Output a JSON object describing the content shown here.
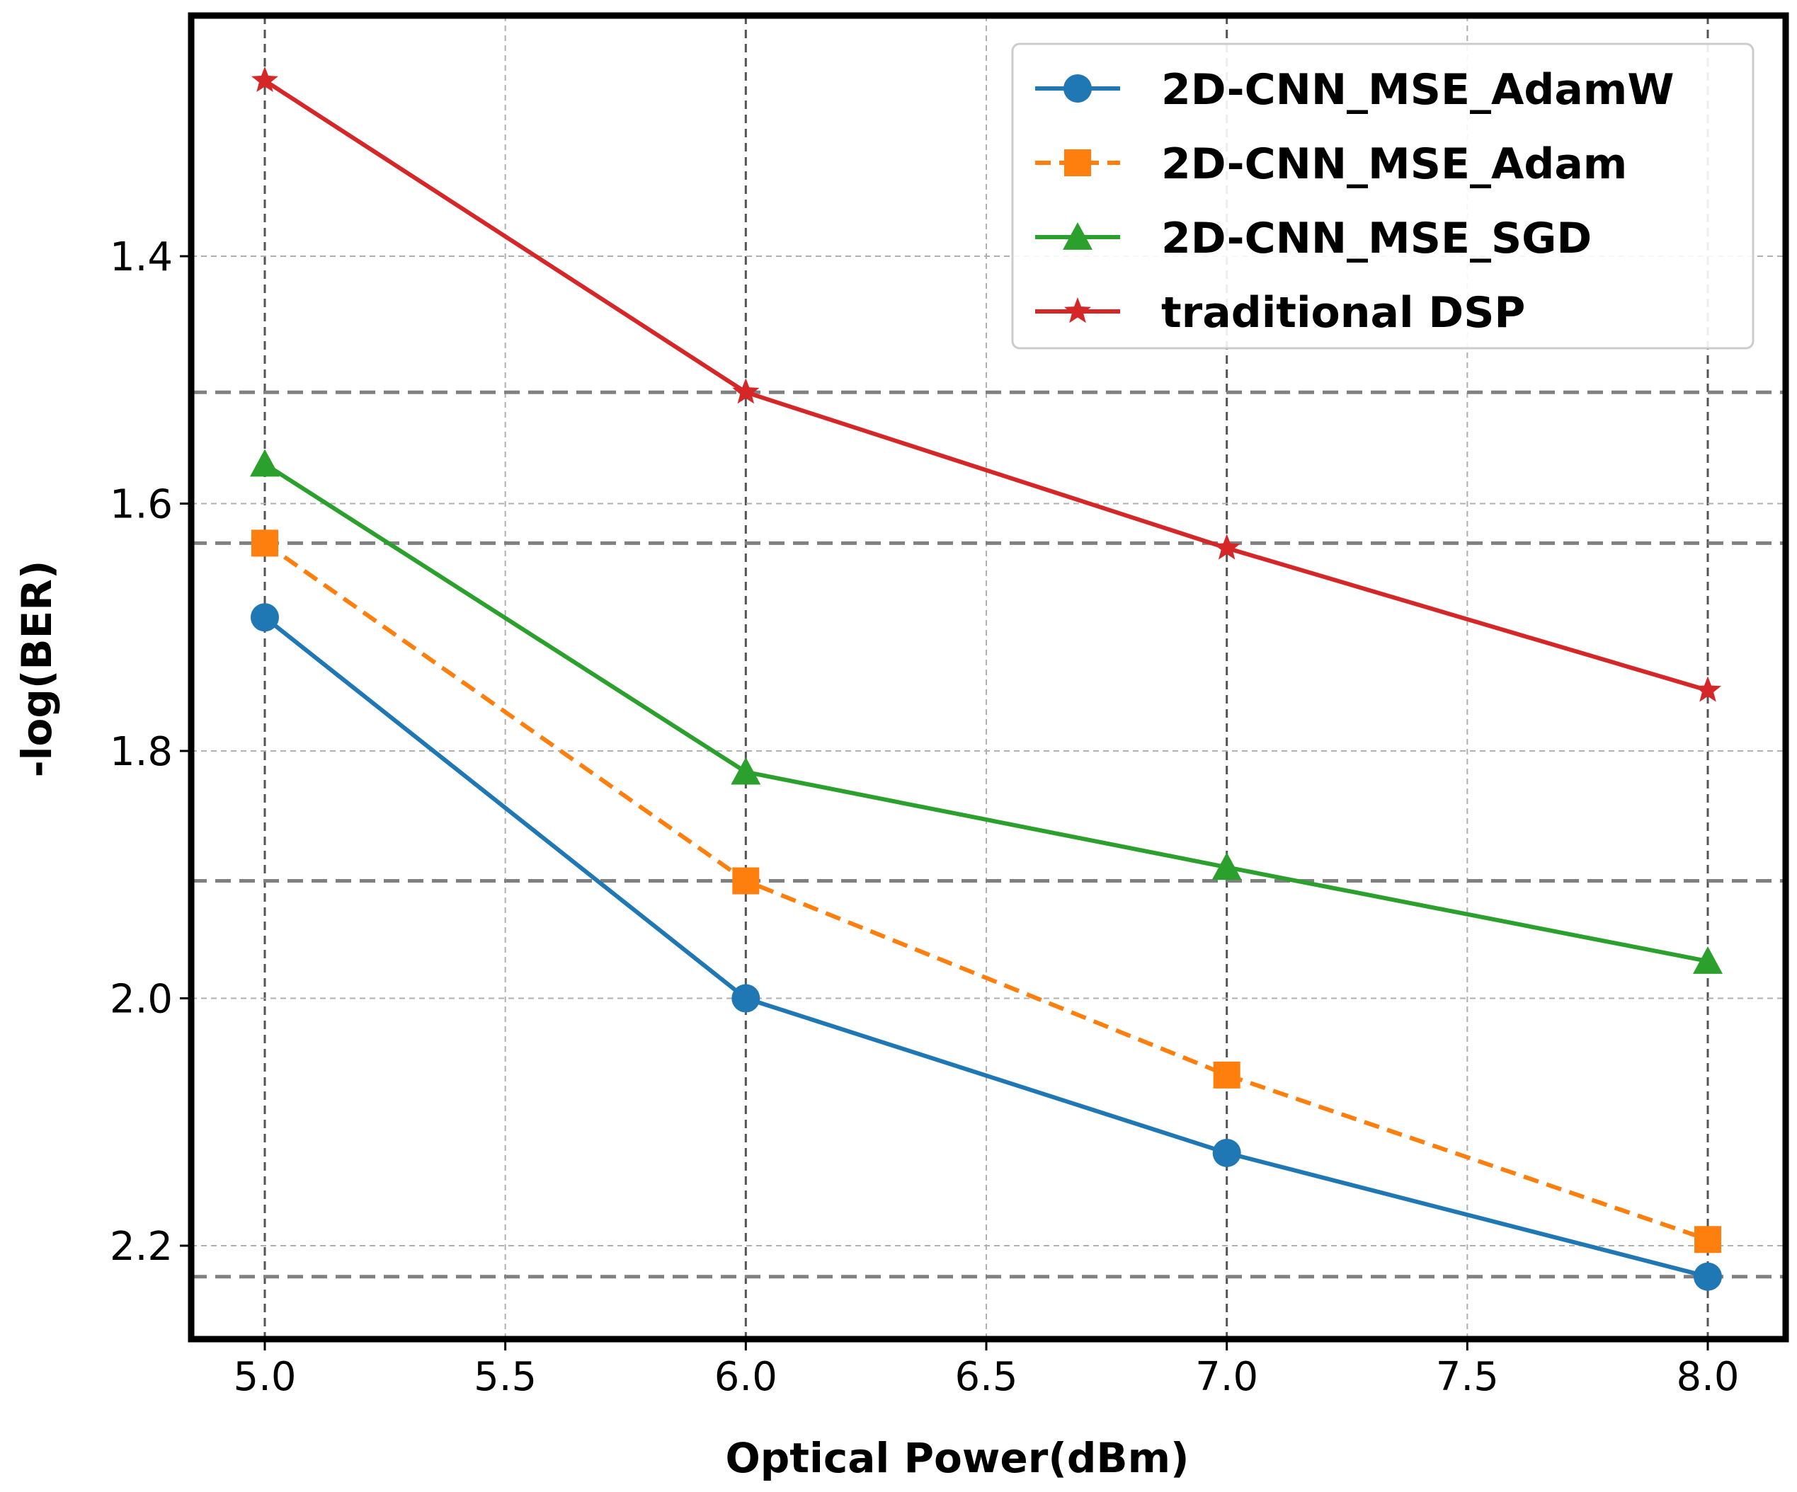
{
  "chart_data": {
    "type": "line",
    "title": "",
    "xlabel": "Optical Power(dBm)",
    "ylabel": "-log(BER)",
    "xlim": [
      4.85,
      8.1
    ],
    "ylim": [
      2.27,
      1.22
    ],
    "y_inverted": true,
    "xticks": [
      5.0,
      5.5,
      6.0,
      6.5,
      7.0,
      7.5,
      8.0
    ],
    "xtick_labels": [
      "5.0",
      "5.5",
      "6.0",
      "6.5",
      "7.0",
      "7.5",
      "8.0"
    ],
    "yticks": [
      1.4,
      1.6,
      1.8,
      2.0,
      2.2
    ],
    "ytick_labels": [
      "1.4",
      "1.6",
      "1.8",
      "2.0",
      "2.2"
    ],
    "grid": true,
    "reference_lines_y": [
      1.51,
      1.632,
      1.905,
      2.225
    ],
    "x": [
      5.0,
      6.0,
      7.0,
      8.0
    ],
    "legend_position": "top-right",
    "series": [
      {
        "name": "2D-CNN_MSE_AdamW",
        "values": [
          1.692,
          2.0,
          2.125,
          2.225
        ],
        "color": "#1f77b4",
        "marker": "circle",
        "dash": "solid"
      },
      {
        "name": "2D-CNN_MSE_Adam",
        "values": [
          1.632,
          1.905,
          2.062,
          2.195
        ],
        "color": "#ff7f0e",
        "marker": "square",
        "dash": "dashed"
      },
      {
        "name": "2D-CNN_MSE_SGD",
        "values": [
          1.568,
          1.817,
          1.894,
          1.97
        ],
        "color": "#2ca02c",
        "marker": "triangle",
        "dash": "solid"
      },
      {
        "name": "traditional DSP",
        "values": [
          1.258,
          1.51,
          1.636,
          1.751
        ],
        "color": "#d62728",
        "marker": "star",
        "dash": "solid"
      }
    ]
  }
}
